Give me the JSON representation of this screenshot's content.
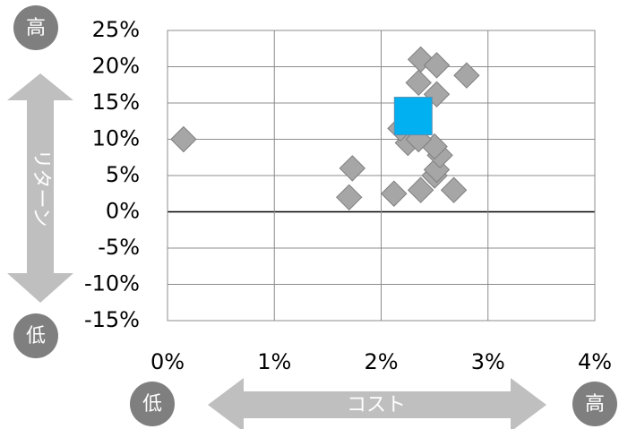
{
  "chart_data": {
    "type": "scatter",
    "title": "",
    "xlabel": "コスト",
    "ylabel": "リターン",
    "xlim": [
      0,
      4
    ],
    "ylim": [
      -15,
      25
    ],
    "x_ticks": [
      "0%",
      "1%",
      "2%",
      "3%",
      "4%"
    ],
    "y_ticks": [
      "25%",
      "20%",
      "15%",
      "10%",
      "5%",
      "0%",
      "-5%",
      "-10%",
      "-15%"
    ],
    "grid": true,
    "legend": "none",
    "colors": {
      "points": "#a6a6a6",
      "highlight": "#00b0f0",
      "badge": "#7f7f7f",
      "arrow": "#bfbfbf"
    },
    "series": [
      {
        "marker": "diamond",
        "points": [
          {
            "x": 0.15,
            "y": 10.0
          },
          {
            "x": 1.73,
            "y": 6.0
          },
          {
            "x": 1.7,
            "y": 2.0
          },
          {
            "x": 2.12,
            "y": 2.5
          },
          {
            "x": 2.37,
            "y": 3.0
          },
          {
            "x": 2.68,
            "y": 3.0
          },
          {
            "x": 2.5,
            "y": 5.0
          },
          {
            "x": 2.52,
            "y": 5.8
          },
          {
            "x": 2.55,
            "y": 7.8
          },
          {
            "x": 2.5,
            "y": 9.0
          },
          {
            "x": 2.25,
            "y": 9.5
          },
          {
            "x": 2.35,
            "y": 10.0
          },
          {
            "x": 2.18,
            "y": 11.5
          },
          {
            "x": 2.35,
            "y": 17.8
          },
          {
            "x": 2.52,
            "y": 16.2
          },
          {
            "x": 2.37,
            "y": 21.0
          },
          {
            "x": 2.52,
            "y": 20.2
          },
          {
            "x": 2.8,
            "y": 18.8
          }
        ]
      },
      {
        "marker": "square",
        "points": [
          {
            "x": 2.3,
            "y": 13.2
          }
        ]
      }
    ],
    "annotations": {
      "y_high": "高",
      "y_low": "低",
      "x_low": "低",
      "x_high": "高"
    }
  }
}
